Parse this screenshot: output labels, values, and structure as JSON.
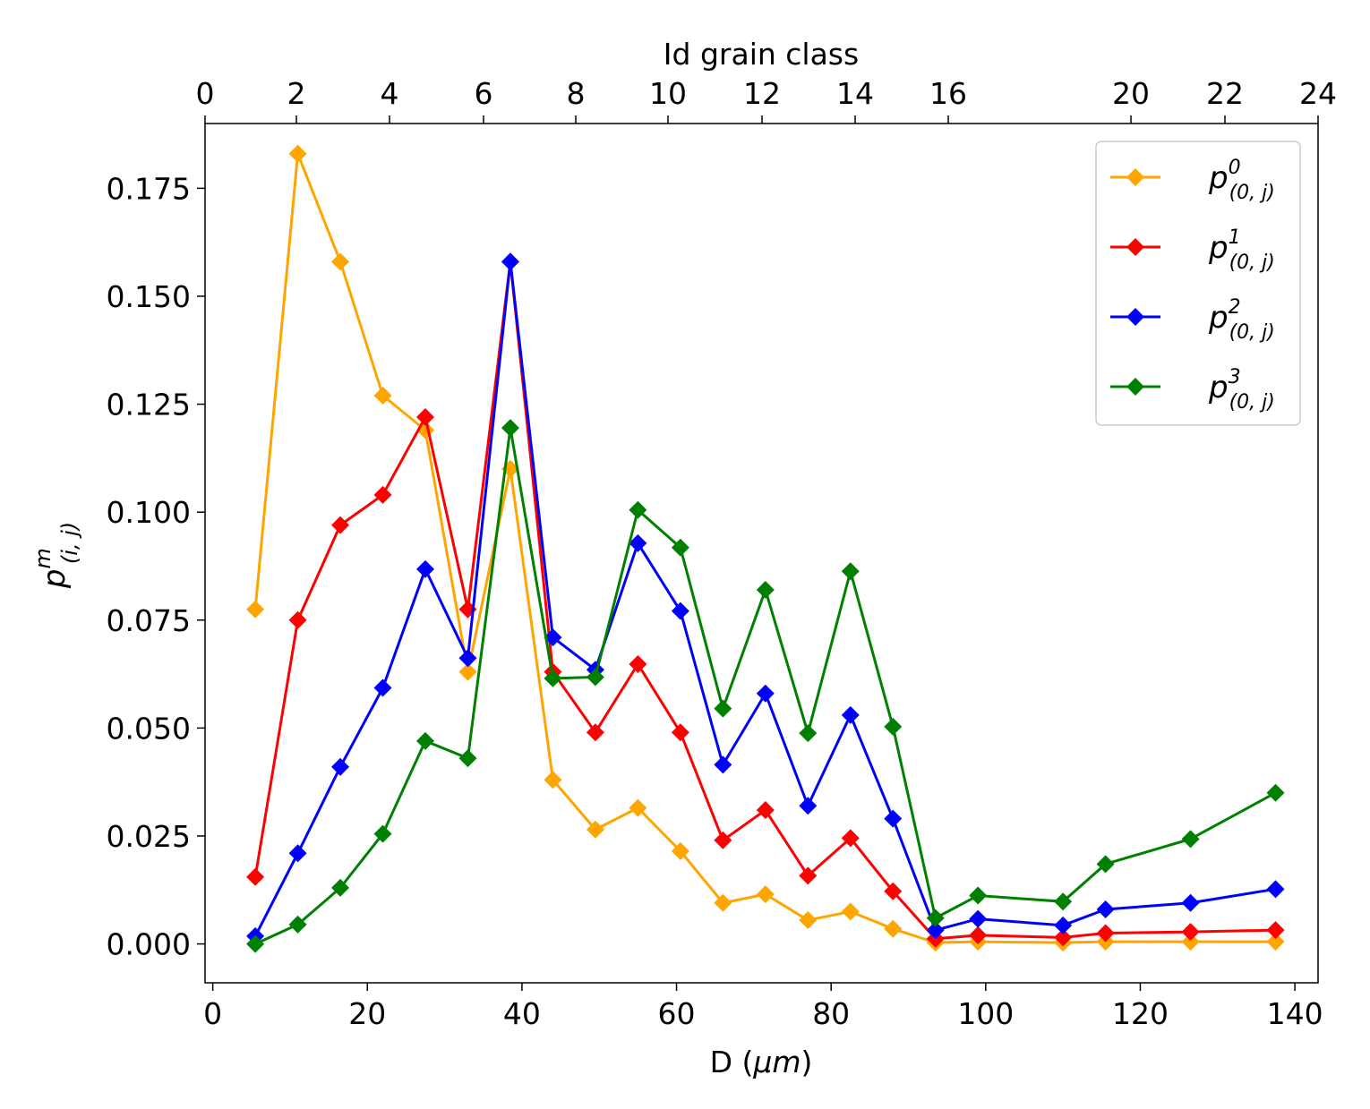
{
  "chart_data": {
    "type": "line",
    "xlabel_main": "D (",
    "xlabel_unit": "μm",
    "xlabel_close": ")",
    "ylabel_base": "p",
    "ylabel_sup": "m",
    "ylabel_sub": "(i, j)",
    "top_xlabel": "Id grain class",
    "xlim": [
      -1,
      143
    ],
    "ylim": [
      -0.009,
      0.19
    ],
    "xticks": [
      0,
      20,
      40,
      60,
      80,
      100,
      120,
      140
    ],
    "xtick_labels": [
      "0",
      "20",
      "40",
      "60",
      "80",
      "100",
      "120",
      "140"
    ],
    "yticks": [
      0.0,
      0.025,
      0.05,
      0.075,
      0.1,
      0.125,
      0.15,
      0.175
    ],
    "ytick_labels": [
      "0.000",
      "0.025",
      "0.050",
      "0.075",
      "0.100",
      "0.125",
      "0.150",
      "0.175"
    ],
    "top_ticks_x": [
      0,
      11,
      23,
      34,
      45,
      56.5,
      68,
      80,
      92,
      103.5,
      115.5,
      133.5,
      145
    ],
    "top_tick_labels": [
      "0",
      "2",
      "4",
      "6",
      "8",
      "10",
      "12",
      "14",
      "16",
      "20",
      "22",
      "24"
    ],
    "top_tick_x_for_labels": [
      0,
      11,
      23,
      34,
      45,
      56.5,
      68,
      80,
      92,
      103.5,
      115.5,
      133.5
    ],
    "top_tick_labels_full": [
      "0",
      "2",
      "4",
      "6",
      "8",
      "10",
      "12",
      "14",
      "16",
      "20",
      "22",
      "24"
    ],
    "top_axis": {
      "positions": [
        -1,
        11,
        23,
        35,
        47,
        59,
        71,
        83,
        95,
        125,
        137,
        149
      ],
      "labels": [
        "0",
        "2",
        "4",
        "6",
        "8",
        "10",
        "12",
        "14",
        "16",
        "20",
        "22",
        "24"
      ]
    },
    "x": [
      5.5,
      11,
      16.5,
      22,
      27.5,
      33,
      38.5,
      44,
      49.5,
      55,
      60.5,
      66,
      71.5,
      77,
      82.5,
      88,
      93.5,
      99,
      110,
      115.5,
      126.5,
      137.5
    ],
    "series": [
      {
        "name": "p0",
        "label_base": "p",
        "label_sup": "0",
        "label_sub": "(0, j)",
        "color": "#FFA500",
        "values": [
          0.0775,
          0.183,
          0.158,
          0.127,
          0.119,
          0.063,
          0.11,
          0.038,
          0.0265,
          0.0315,
          0.0215,
          0.0095,
          0.0115,
          0.0055,
          0.0075,
          0.0035,
          0.0003,
          0.0005,
          0.0003,
          0.0005,
          0.0005,
          0.0005
        ]
      },
      {
        "name": "p1",
        "label_base": "p",
        "label_sup": "1",
        "label_sub": "(0, j)",
        "color": "#FF0000",
        "values": [
          0.0155,
          0.075,
          0.097,
          0.104,
          0.122,
          0.0775,
          0.158,
          0.063,
          0.049,
          0.0648,
          0.049,
          0.024,
          0.031,
          0.0158,
          0.0245,
          0.0122,
          0.0012,
          0.002,
          0.0015,
          0.0025,
          0.0028,
          0.0032
        ]
      },
      {
        "name": "p2",
        "label_base": "p",
        "label_sup": "2",
        "label_sub": "(0, j)",
        "color": "#0000FF",
        "values": [
          0.0018,
          0.021,
          0.041,
          0.0593,
          0.0868,
          0.0662,
          0.158,
          0.071,
          0.0635,
          0.0928,
          0.0771,
          0.0415,
          0.058,
          0.032,
          0.053,
          0.029,
          0.0032,
          0.0058,
          0.0043,
          0.008,
          0.0095,
          0.0127
        ]
      },
      {
        "name": "p3",
        "label_base": "p",
        "label_sup": "3",
        "label_sub": "(0, j)",
        "color": "#008000",
        "values": [
          0.0,
          0.0045,
          0.013,
          0.0255,
          0.047,
          0.043,
          0.1195,
          0.0615,
          0.0618,
          0.1005,
          0.0918,
          0.0545,
          0.082,
          0.0488,
          0.0863,
          0.0503,
          0.006,
          0.0112,
          0.0098,
          0.0185,
          0.0243,
          0.035
        ]
      }
    ],
    "legend_position": "top-right"
  }
}
